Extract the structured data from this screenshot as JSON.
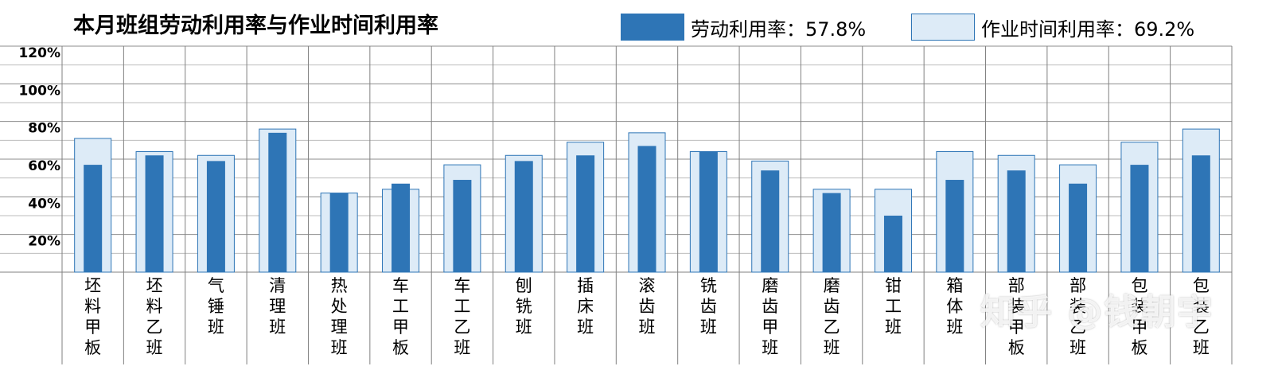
{
  "chart_data": {
    "type": "bar",
    "title": "本月班组劳动利用率与作业时间利用率",
    "xlabel": "",
    "ylabel": "",
    "ylim": [
      0,
      120
    ],
    "y_ticks": [
      "20%",
      "40%",
      "60%",
      "80%",
      "100%",
      "120%"
    ],
    "grid": true,
    "legend_position": "top-right",
    "categories": [
      "坯料甲板",
      "坯料乙班",
      "气锤班",
      "清理班",
      "热处理班",
      "车工甲板",
      "车工乙班",
      "刨铣班",
      "插床班",
      "滚齿班",
      "铣齿班",
      "磨齿甲班",
      "磨齿乙班",
      "钳工班",
      "箱体班",
      "部装甲板",
      "部装乙班",
      "包装甲板",
      "包装乙班"
    ],
    "series": [
      {
        "name": "劳动利用率：57.8%",
        "color": "#2e75b6",
        "values": [
          57,
          62,
          59,
          74,
          42,
          47,
          49,
          59,
          62,
          67,
          64,
          54,
          42,
          30,
          49,
          54,
          47,
          57,
          62
        ]
      },
      {
        "name": "作业时间利用率：69.2%",
        "color": "#ddebf7",
        "values": [
          71,
          64,
          62,
          76,
          42,
          44,
          57,
          62,
          69,
          74,
          64,
          59,
          44,
          44,
          64,
          62,
          57,
          69,
          76
        ]
      }
    ]
  },
  "watermark": "知乎 @钱朝宇"
}
